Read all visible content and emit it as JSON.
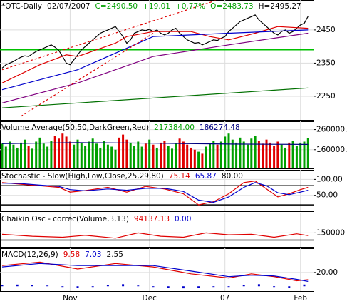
{
  "chart_data": [
    {
      "type": "line",
      "legend": [
        {
          "text": "*OTC-Daily",
          "color": "#000000"
        },
        {
          "text": "02/07/2007",
          "color": "#000000"
        },
        {
          "text": "C=2490.50",
          "color": "#00a000"
        },
        {
          "text": "+19.01",
          "color": "#00a000"
        },
        {
          "text": "+0.77%",
          "color": "#00a000"
        },
        {
          "text": "O=2483.73",
          "color": "#00a000"
        },
        {
          "text": "H=2495.27",
          "color": "#000000"
        }
      ],
      "categories": [
        null,
        null,
        null,
        null,
        null,
        null,
        null,
        null,
        null,
        null,
        null,
        null,
        null,
        null,
        null,
        null,
        null,
        null,
        "Nov",
        null,
        null,
        null,
        null,
        null,
        null,
        null,
        null,
        null,
        null,
        null,
        null,
        null,
        null,
        null,
        null,
        null,
        null,
        null,
        null,
        "Dec",
        null,
        null,
        null,
        null,
        null,
        null,
        null,
        null,
        null,
        null,
        null,
        null,
        null,
        null,
        null,
        null,
        null,
        null,
        null,
        "07",
        null,
        null,
        null,
        null,
        null,
        null,
        null,
        null,
        null,
        null,
        null,
        null,
        null,
        null,
        null,
        null,
        null,
        null,
        null,
        "Feb",
        null,
        null
      ],
      "ylim": [
        2179,
        2540
      ],
      "yticks": [
        2250,
        2350,
        2450
      ],
      "grid": true,
      "hlines": [
        {
          "value": 2390,
          "color": "#00c000"
        }
      ],
      "series": [
        {
          "color": "#000000",
          "values": [
            2335,
            2345,
            2350,
            2355,
            2362,
            2368,
            2372,
            2370,
            2378,
            2385,
            2390,
            2395,
            2400,
            2405,
            2398,
            2388,
            2370,
            2350,
            2345,
            2360,
            2375,
            2390,
            2400,
            2410,
            2420,
            2430,
            2440,
            2445,
            2450,
            2455,
            2460,
            2445,
            2430,
            2410,
            2420,
            2440,
            2445,
            2450,
            2448,
            2452,
            2445,
            2450,
            2440,
            2435,
            2440,
            2450,
            2455,
            2440,
            2430,
            2420,
            2415,
            2410,
            2412,
            2405,
            2410,
            2415,
            2420,
            2418,
            2425,
            2430,
            2445,
            2455,
            2465,
            2475,
            2480,
            2485,
            2490,
            2495,
            2480,
            2470,
            2460,
            2450,
            2440,
            2435,
            2445,
            2450,
            2440,
            2445,
            2455,
            2465,
            2470,
            2490.5
          ]
        },
        {
          "color": "#e00000",
          "x": [
            0,
            10,
            17,
            20,
            30,
            33,
            40,
            50,
            55,
            60,
            67,
            73,
            81
          ],
          "values": [
            2290,
            2345,
            2375,
            2370,
            2410,
            2430,
            2445,
            2445,
            2430,
            2420,
            2440,
            2460,
            2455
          ]
        },
        {
          "color": "#0000cc",
          "x": [
            0,
            20,
            40,
            60,
            81
          ],
          "values": [
            2270,
            2330,
            2430,
            2440,
            2450
          ]
        },
        {
          "color": "#800080",
          "x": [
            0,
            20,
            40,
            60,
            81
          ],
          "values": [
            2230,
            2290,
            2370,
            2405,
            2440
          ]
        },
        {
          "color": "#007000",
          "x": [
            0,
            81
          ],
          "values": [
            2215,
            2275
          ]
        },
        {
          "color": "#e00000",
          "dashed": true,
          "x": [
            0,
            57
          ],
          "values": [
            2330,
            2540
          ]
        },
        {
          "color": "#e00000",
          "dashed": true,
          "x": [
            5,
            40
          ],
          "values": [
            2190,
            2440
          ]
        }
      ]
    },
    {
      "type": "bar",
      "legend": [
        {
          "text": "Volume Average(50,50,DarkGreen,Red)",
          "color": "#000000"
        },
        {
          "text": "217384.00",
          "color": "#00a000"
        },
        {
          "text": "186274.48",
          "color": "#000080"
        }
      ],
      "ylim": [
        67000,
        301000
      ],
      "yticks": [
        {
          "value": 260000,
          "label": "260000."
        },
        {
          "value": 160000,
          "label": "160000."
        }
      ],
      "grid": true,
      "up_color": "#00a000",
      "down_color": "#e00000",
      "series": [
        {
          "kind": "bar",
          "values": [
            190000,
            175000,
            200000,
            185000,
            170000,
            195000,
            210000,
            180000,
            165000,
            200000,
            220000,
            190000,
            175000,
            205000,
            230000,
            215000,
            240000,
            225000,
            200000,
            185000,
            210000,
            195000,
            180000,
            200000,
            215000,
            190000,
            170000,
            205000,
            185000,
            175000,
            160000,
            220000,
            235000,
            210000,
            195000,
            180000,
            200000,
            175000,
            190000,
            210000,
            185000,
            170000,
            195000,
            205000,
            180000,
            165000,
            190000,
            215000,
            200000,
            185000,
            170000,
            160000,
            150000,
            140000,
            175000,
            190000,
            205000,
            185000,
            200000,
            225000,
            240000,
            210000,
            195000,
            220000,
            200000,
            185000,
            215000,
            230000,
            205000,
            190000,
            210000,
            195000,
            180000,
            200000,
            185000,
            170000,
            195000,
            205000,
            180000,
            195000,
            200000,
            217384
          ]
        },
        {
          "color": "#000080",
          "x": [
            0,
            20,
            40,
            60,
            81
          ],
          "values": [
            190000,
            195000,
            192000,
            188000,
            186274.48
          ]
        }
      ]
    },
    {
      "type": "line",
      "legend": [
        {
          "text": "Stochastic - Slow(High,Low,Close,25,29,80)",
          "color": "#000000"
        },
        {
          "text": "75.14",
          "color": "#e00000"
        },
        {
          "text": "65.87",
          "color": "#0000cc"
        },
        {
          "text": "80.00",
          "color": "#000000"
        }
      ],
      "ylim": [
        0,
        130
      ],
      "yticks": [
        {
          "value": 100,
          "label": "100.00"
        },
        {
          "value": 50,
          "label": "50.00"
        }
      ],
      "grid": true,
      "hlines": [
        {
          "value": 80,
          "color": "#000000"
        },
        {
          "value": 20,
          "color": "#000000"
        }
      ],
      "series": [
        {
          "color": "#e00000",
          "x": [
            0,
            5,
            10,
            15,
            18,
            22,
            28,
            33,
            38,
            43,
            48,
            52,
            56,
            60,
            64,
            67,
            70,
            73,
            76,
            79,
            81
          ],
          "values": [
            90,
            85,
            80,
            75,
            60,
            65,
            75,
            60,
            78,
            70,
            55,
            20,
            30,
            55,
            90,
            95,
            70,
            45,
            55,
            68,
            75.14
          ]
        },
        {
          "color": "#0000cc",
          "x": [
            0,
            5,
            10,
            15,
            18,
            22,
            28,
            33,
            38,
            43,
            48,
            52,
            56,
            60,
            64,
            67,
            70,
            73,
            76,
            79,
            81
          ],
          "values": [
            88,
            87,
            82,
            78,
            68,
            64,
            70,
            66,
            72,
            72,
            62,
            35,
            28,
            45,
            75,
            90,
            80,
            58,
            52,
            60,
            65.87
          ]
        }
      ]
    },
    {
      "type": "line",
      "legend": [
        {
          "text": "Chaikin Osc - correc(Volume,3,13)",
          "color": "#000000"
        },
        {
          "text": "94137.13",
          "color": "#e00000"
        },
        {
          "text": "0.00",
          "color": "#0000cc"
        }
      ],
      "ylim": [
        -140000,
        570000
      ],
      "yticks": [
        150000
      ],
      "grid": true,
      "hlines": [
        {
          "value": 0,
          "color": "#000000"
        }
      ],
      "series": [
        {
          "color": "#e00000",
          "x": [
            0,
            8,
            16,
            22,
            30,
            36,
            42,
            48,
            54,
            60,
            66,
            72,
            78,
            81
          ],
          "values": [
            120000,
            80000,
            60000,
            100000,
            40000,
            150000,
            80000,
            60000,
            150000,
            110000,
            120000,
            60000,
            130000,
            94137.13
          ]
        }
      ]
    },
    {
      "type": "line",
      "legend": [
        {
          "text": "MACD(12,26,9)",
          "color": "#000000"
        },
        {
          "text": "9.58",
          "color": "#e00000"
        },
        {
          "text": "7.03",
          "color": "#0000cc"
        },
        {
          "text": "2.55",
          "color": "#000000"
        }
      ],
      "ylim": [
        -7,
        55
      ],
      "yticks": [
        {
          "value": 20,
          "label": "20.00"
        }
      ],
      "grid": true,
      "series": [
        {
          "color": "#e00000",
          "x": [
            0,
            10,
            20,
            30,
            40,
            50,
            60,
            66,
            72,
            78,
            81
          ],
          "values": [
            30,
            35,
            25,
            33,
            28,
            18,
            12,
            18,
            14,
            8,
            9.58
          ]
        },
        {
          "color": "#0000cc",
          "x": [
            0,
            10,
            20,
            30,
            40,
            50,
            60,
            66,
            72,
            78,
            81
          ],
          "values": [
            28,
            33,
            30,
            30,
            30,
            22,
            14,
            16,
            15,
            10,
            7.03
          ]
        },
        {
          "kind": "bar",
          "color": "#0000cc",
          "x": [
            0,
            4,
            8,
            12,
            16,
            20,
            24,
            28,
            32,
            36,
            40,
            44,
            48,
            52,
            56,
            60,
            64,
            68,
            72,
            76,
            80
          ],
          "values": [
            2,
            2.5,
            2,
            1,
            -1,
            -2,
            -1,
            2,
            3,
            1,
            -1,
            -2,
            -3,
            -2,
            -1,
            -1,
            2,
            3,
            -1,
            -2,
            2.55
          ]
        }
      ]
    }
  ]
}
